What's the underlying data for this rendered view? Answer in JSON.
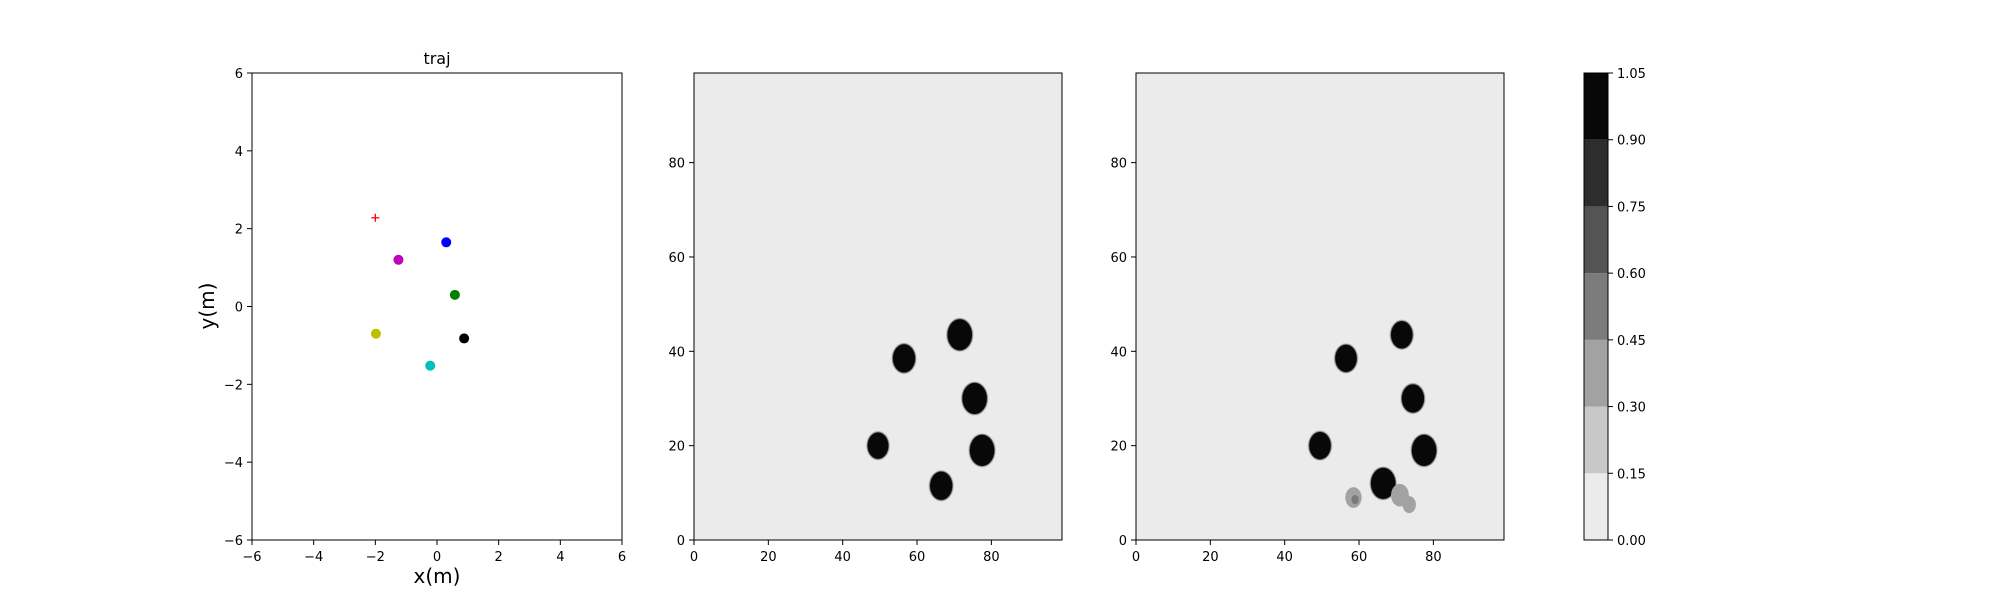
{
  "chart_data": [
    {
      "type": "scatter",
      "title": "traj",
      "xlabel": "x(m)",
      "ylabel": "y(m)",
      "xlim": [
        -6,
        6
      ],
      "ylim": [
        -6,
        6
      ],
      "xticks": [
        "−6",
        "−4",
        "−2",
        "0",
        "2",
        "4",
        "6"
      ],
      "yticks": [
        "−6",
        "−4",
        "−2",
        "0",
        "2",
        "4",
        "6"
      ],
      "grid": false,
      "points": [
        {
          "name": "goal",
          "marker": "plus",
          "color": "#ff0000",
          "x": -2.0,
          "y": 2.28
        },
        {
          "name": "magenta",
          "marker": "circle",
          "color": "#bf00bf",
          "x": -1.25,
          "y": 1.2
        },
        {
          "name": "blue",
          "marker": "circle",
          "color": "#0000ff",
          "x": 0.3,
          "y": 1.65
        },
        {
          "name": "green",
          "marker": "circle",
          "color": "#008000",
          "x": 0.58,
          "y": 0.3
        },
        {
          "name": "black",
          "marker": "circle",
          "color": "#000000",
          "x": 0.88,
          "y": -0.82
        },
        {
          "name": "olive",
          "marker": "circle",
          "color": "#bfbf00",
          "x": -1.98,
          "y": -0.7
        },
        {
          "name": "cyan",
          "marker": "circle",
          "color": "#00bfbf",
          "x": -0.22,
          "y": -1.52
        }
      ]
    },
    {
      "type": "heatmap",
      "title": "",
      "xlim": [
        0,
        99
      ],
      "ylim": [
        0,
        99
      ],
      "xticks": [
        "0",
        "20",
        "40",
        "60",
        "80"
      ],
      "yticks": [
        "0",
        "20",
        "40",
        "60",
        "80"
      ],
      "background_value": 0.05,
      "blobs": [
        {
          "x": 71.5,
          "y": 43.5,
          "r": 3.3,
          "value": 1.0
        },
        {
          "x": 56.5,
          "y": 38.5,
          "r": 3.0,
          "value": 1.0
        },
        {
          "x": 75.5,
          "y": 30.0,
          "r": 3.3,
          "value": 1.0
        },
        {
          "x": 49.5,
          "y": 20.0,
          "r": 2.8,
          "value": 1.0
        },
        {
          "x": 77.5,
          "y": 19.0,
          "r": 3.3,
          "value": 1.0
        },
        {
          "x": 66.5,
          "y": 11.5,
          "r": 3.0,
          "value": 1.0
        }
      ]
    },
    {
      "type": "heatmap",
      "title": "",
      "xlim": [
        0,
        99
      ],
      "ylim": [
        0,
        99
      ],
      "xticks": [
        "0",
        "20",
        "40",
        "60",
        "80"
      ],
      "yticks": [
        "0",
        "20",
        "40",
        "60",
        "80"
      ],
      "background_value": 0.05,
      "blobs": [
        {
          "x": 71.5,
          "y": 43.5,
          "r": 2.9,
          "value": 1.0
        },
        {
          "x": 56.5,
          "y": 38.5,
          "r": 2.9,
          "value": 1.0
        },
        {
          "x": 74.5,
          "y": 30.0,
          "r": 3.0,
          "value": 1.0
        },
        {
          "x": 49.5,
          "y": 20.0,
          "r": 2.9,
          "value": 1.0
        },
        {
          "x": 77.5,
          "y": 19.0,
          "r": 3.3,
          "value": 1.0
        },
        {
          "x": 66.5,
          "y": 12.0,
          "r": 3.3,
          "value": 1.0
        },
        {
          "x": 58.5,
          "y": 9.0,
          "r": 2.2,
          "value": 0.35
        },
        {
          "x": 71.0,
          "y": 9.5,
          "r": 2.4,
          "value": 0.3
        },
        {
          "x": 73.5,
          "y": 7.5,
          "r": 1.8,
          "value": 0.3
        }
      ]
    },
    {
      "type": "colorbar",
      "levels": [
        0.0,
        0.15,
        0.3,
        0.45,
        0.6,
        0.75,
        0.9,
        1.05
      ],
      "tick_labels": [
        "0.00",
        "0.15",
        "0.30",
        "0.45",
        "0.60",
        "0.75",
        "0.90",
        "1.05"
      ],
      "colors": [
        "#ebebeb",
        "#c8c8c8",
        "#a2a2a2",
        "#7b7b7b",
        "#545454",
        "#2d2d2d",
        "#080808"
      ]
    }
  ]
}
